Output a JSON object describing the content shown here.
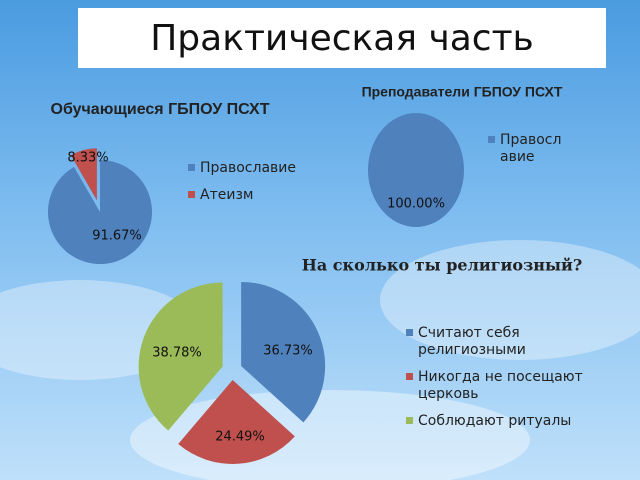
{
  "title": "Практическая часть",
  "chart_data": [
    {
      "type": "pie",
      "title": "Обучающиеся ГБПОУ ПСХТ",
      "categories": [
        "Православие",
        "Атеизм"
      ],
      "values": [
        91.67,
        8.33
      ],
      "value_labels": [
        "91.67%",
        "8.33%"
      ],
      "colors": [
        "#4f81bd",
        "#c0504d"
      ]
    },
    {
      "type": "pie",
      "title": "Преподаватели ГБПОУ ПСХТ",
      "categories": [
        "Православие"
      ],
      "values": [
        100
      ],
      "value_labels": [
        "100.00%"
      ],
      "colors": [
        "#4f81bd"
      ]
    },
    {
      "type": "pie",
      "title": "На сколько ты религиозный?",
      "categories": [
        "Считают себя религиозными",
        "Никогда не посещают церковь",
        "Соблюдают ритуалы"
      ],
      "values": [
        36.73,
        24.49,
        38.78
      ],
      "value_labels": [
        "36.73%",
        "24.49%",
        "38.78%"
      ],
      "colors": [
        "#4f81bd",
        "#c0504d",
        "#9bbb59"
      ]
    }
  ]
}
